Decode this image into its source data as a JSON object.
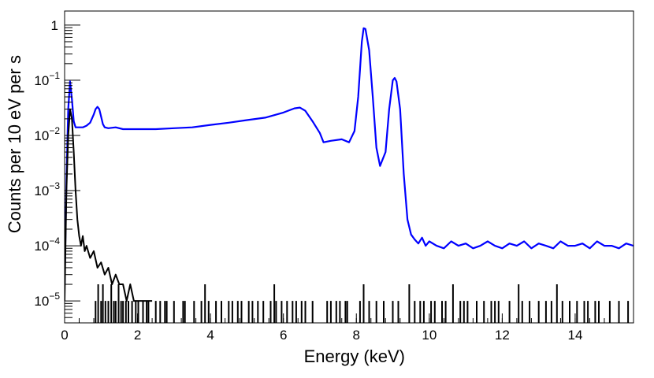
{
  "chart_data": {
    "type": "line",
    "title": "",
    "xlabel": "Energy (keV)",
    "ylabel": "Counts per 10 eV per s",
    "xlim": [
      0,
      15.6
    ],
    "ylim": [
      4e-06,
      1.8
    ],
    "y_scale": "log",
    "grid": false,
    "x_ticks": [
      0,
      2,
      4,
      6,
      8,
      10,
      12,
      14
    ],
    "x_tick_labels": [
      "0",
      "2",
      "4",
      "6",
      "8",
      "10",
      "12",
      "14"
    ],
    "y_ticks": [
      1,
      0.1,
      0.01,
      0.001,
      0.0001,
      1e-05
    ],
    "y_tick_labels": [
      {
        "base": "1",
        "exp": ""
      },
      {
        "base": "10",
        "exp": "−1"
      },
      {
        "base": "10",
        "exp": "−2"
      },
      {
        "base": "10",
        "exp": "−3"
      },
      {
        "base": "10",
        "exp": "−4"
      },
      {
        "base": "10",
        "exp": "−5"
      }
    ],
    "series": [
      {
        "color": "#0000ff",
        "x": [
          0.0,
          0.05,
          0.1,
          0.15,
          0.2,
          0.25,
          0.3,
          0.4,
          0.5,
          0.6,
          0.7,
          0.8,
          0.85,
          0.9,
          0.95,
          1.0,
          1.05,
          1.1,
          1.2,
          1.4,
          1.6,
          2.0,
          2.5,
          3.0,
          3.5,
          4.0,
          4.5,
          5.0,
          5.5,
          6.0,
          6.3,
          6.45,
          6.6,
          6.8,
          7.0,
          7.1,
          7.3,
          7.6,
          7.8,
          7.95,
          8.05,
          8.15,
          8.2,
          8.25,
          8.35,
          8.45,
          8.55,
          8.65,
          8.8,
          8.9,
          9.0,
          9.05,
          9.1,
          9.2,
          9.3,
          9.4,
          9.5,
          9.6,
          9.7,
          9.8,
          9.9,
          10.0,
          10.2,
          10.4,
          10.6,
          10.8,
          11.0,
          11.2,
          11.4,
          11.6,
          11.8,
          12.0,
          12.2,
          12.4,
          12.6,
          12.8,
          13.0,
          13.2,
          13.4,
          13.6,
          13.8,
          14.0,
          14.2,
          14.4,
          14.6,
          14.8,
          15.0,
          15.2,
          15.4,
          15.6
        ],
        "y": [
          2e-05,
          0.0015,
          0.03,
          0.095,
          0.045,
          0.018,
          0.014,
          0.014,
          0.014,
          0.015,
          0.017,
          0.024,
          0.03,
          0.033,
          0.03,
          0.022,
          0.016,
          0.014,
          0.0135,
          0.014,
          0.013,
          0.013,
          0.013,
          0.0135,
          0.014,
          0.0155,
          0.017,
          0.019,
          0.021,
          0.026,
          0.031,
          0.032,
          0.028,
          0.018,
          0.011,
          0.0075,
          0.008,
          0.0085,
          0.0075,
          0.012,
          0.05,
          0.5,
          0.88,
          0.85,
          0.35,
          0.05,
          0.006,
          0.0028,
          0.005,
          0.03,
          0.1,
          0.11,
          0.095,
          0.03,
          0.002,
          0.0003,
          0.00016,
          0.00013,
          0.00011,
          0.00014,
          0.0001,
          0.00012,
          0.0001,
          9e-05,
          0.00012,
          0.0001,
          0.00011,
          9e-05,
          0.0001,
          0.00012,
          0.0001,
          9e-05,
          0.00011,
          0.0001,
          0.00012,
          9e-05,
          0.00011,
          0.0001,
          9e-05,
          0.00012,
          0.0001,
          0.0001,
          0.00011,
          9e-05,
          0.00012,
          0.0001,
          0.0001,
          9e-05,
          0.00011,
          0.0001
        ]
      },
      {
        "color": "#000000",
        "x": [
          0.0,
          0.05,
          0.1,
          0.15,
          0.2,
          0.25,
          0.3,
          0.35,
          0.4,
          0.45,
          0.5,
          0.55,
          0.6,
          0.7,
          0.8,
          0.9,
          1.0,
          1.1,
          1.2,
          1.3,
          1.4,
          1.5,
          1.6,
          1.7,
          1.8,
          1.9,
          2.0,
          2.1,
          2.2,
          2.3,
          2.4
        ],
        "y": [
          1e-05,
          0.001,
          0.01,
          0.03,
          0.02,
          0.005,
          0.001,
          0.0003,
          0.00015,
          0.0001,
          0.00015,
          8e-05,
          0.0001,
          6e-05,
          8e-05,
          4e-05,
          5e-05,
          3e-05,
          4e-05,
          2e-05,
          3e-05,
          2e-05,
          2e-05,
          1e-05,
          2e-05,
          1e-05,
          1e-05,
          1e-05,
          1e-05,
          1e-05,
          1e-05
        ]
      }
    ],
    "sparse_counts": {
      "color": "#000000",
      "x": [
        0.85,
        0.92,
        1.0,
        1.05,
        1.12,
        1.2,
        1.28,
        1.35,
        1.4,
        1.48,
        1.55,
        1.6,
        1.68,
        1.75,
        1.85,
        1.95,
        2.02,
        2.15,
        2.25,
        2.3,
        2.5,
        2.62,
        2.75,
        2.8,
        3.0,
        3.25,
        3.3,
        3.55,
        3.75,
        3.85,
        3.95,
        4.15,
        4.3,
        4.5,
        4.6,
        4.75,
        4.85,
        5.05,
        5.15,
        5.3,
        5.45,
        5.65,
        5.75,
        5.8,
        5.95,
        6.1,
        6.25,
        6.35,
        6.5,
        6.6,
        6.8,
        7.2,
        7.3,
        7.45,
        7.55,
        7.7,
        7.75,
        8.1,
        8.2,
        8.35,
        8.55,
        8.75,
        9.0,
        9.15,
        9.45,
        9.6,
        9.75,
        9.85,
        10.05,
        10.15,
        10.35,
        10.45,
        10.65,
        10.85,
        10.95,
        11.05,
        11.3,
        11.5,
        11.7,
        11.8,
        11.9,
        12.2,
        12.45,
        12.55,
        12.75,
        13.0,
        13.2,
        13.35,
        13.5,
        13.65,
        13.85,
        14.05,
        14.25,
        14.35,
        14.55,
        14.65,
        14.95,
        15.2,
        15.45
      ],
      "y": [
        1e-05,
        2e-05,
        1e-05,
        2e-05,
        1e-05,
        1e-05,
        2e-05,
        1e-05,
        1e-05,
        2e-05,
        1e-05,
        1e-05,
        1e-05,
        1e-05,
        1e-05,
        1e-05,
        1e-05,
        1e-05,
        1e-05,
        1e-05,
        1e-05,
        1e-05,
        1e-05,
        1e-05,
        1e-05,
        1e-05,
        1e-05,
        1e-05,
        1e-05,
        2e-05,
        1e-05,
        1e-05,
        1e-05,
        1e-05,
        1e-05,
        1e-05,
        1e-05,
        1e-05,
        1e-05,
        1e-05,
        1e-05,
        1e-05,
        2e-05,
        1e-05,
        1e-05,
        1e-05,
        1e-05,
        1e-05,
        1e-05,
        1e-05,
        1e-05,
        1e-05,
        1e-05,
        1e-05,
        1e-05,
        1e-05,
        1e-05,
        1e-05,
        2e-05,
        1e-05,
        1e-05,
        1e-05,
        1e-05,
        1e-05,
        2e-05,
        1e-05,
        1e-05,
        1e-05,
        1e-05,
        1e-05,
        1e-05,
        1e-05,
        2e-05,
        1e-05,
        1e-05,
        1e-05,
        1e-05,
        1e-05,
        1e-05,
        1e-05,
        1e-05,
        1e-05,
        2e-05,
        1e-05,
        1e-05,
        1e-05,
        1e-05,
        1e-05,
        2e-05,
        1e-05,
        1e-05,
        1e-05,
        1e-05,
        1e-05,
        1e-05,
        1e-05,
        1e-05,
        1e-05,
        1e-05
      ]
    }
  }
}
